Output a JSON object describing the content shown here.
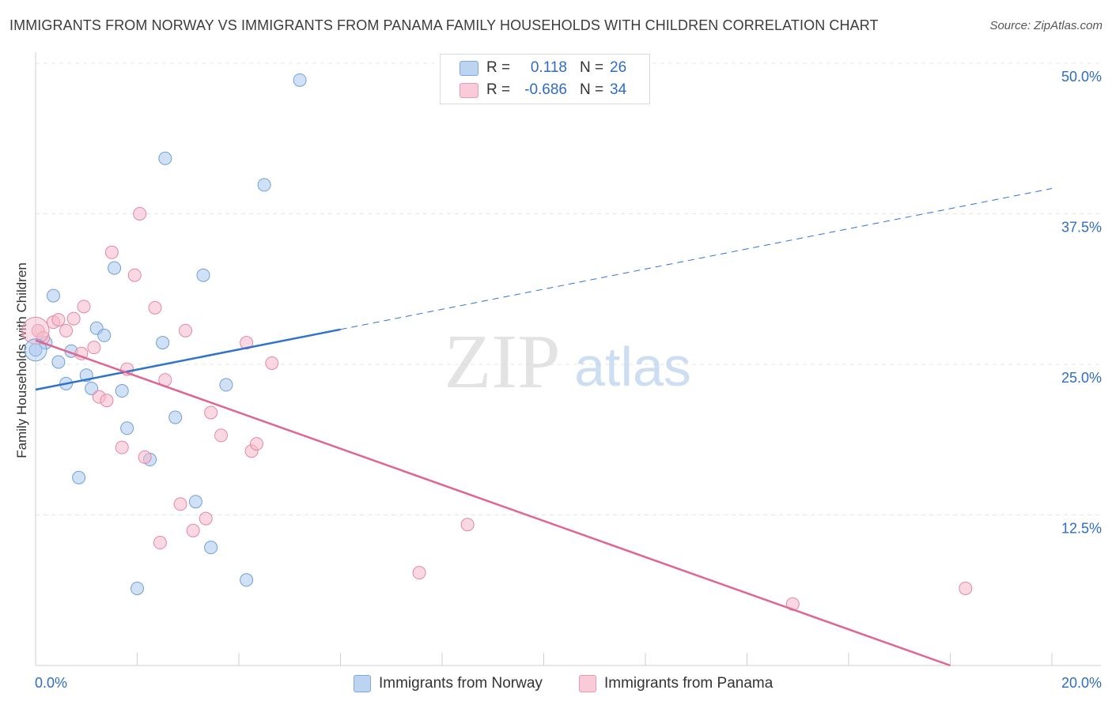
{
  "title": "IMMIGRANTS FROM NORWAY VS IMMIGRANTS FROM PANAMA FAMILY HOUSEHOLDS WITH CHILDREN CORRELATION CHART",
  "source": "Source: ZipAtlas.com",
  "watermark": {
    "zip": "ZIP",
    "atlas": "atlas"
  },
  "stats": [
    {
      "r_label": "R =",
      "r_value": "0.118",
      "n_label": "N =",
      "n_value": "26",
      "color": "#a9c8ef"
    },
    {
      "r_label": "R =",
      "r_value": "-0.686",
      "n_label": "N =",
      "n_value": "34",
      "color": "#f5b8c9"
    }
  ],
  "legend": [
    {
      "label": "Immigrants from Norway",
      "color": "#a9c8ef"
    },
    {
      "label": "Immigrants from Panama",
      "color": "#f5b8c9"
    }
  ],
  "chart_data": {
    "type": "scatter",
    "title": "IMMIGRANTS FROM NORWAY VS IMMIGRANTS FROM PANAMA FAMILY HOUSEHOLDS WITH CHILDREN CORRELATION CHART",
    "xlabel": "",
    "ylabel": "Family Households with Children",
    "xlim": [
      0,
      20
    ],
    "ylim": [
      0,
      50
    ],
    "x_tick_labels": [
      "0.0%",
      "20.0%"
    ],
    "y_ticks": [
      12.5,
      25.0,
      37.5,
      50.0
    ],
    "y_tick_labels": [
      "12.5%",
      "25.0%",
      "37.5%",
      "50.0%"
    ],
    "grid": true,
    "series": [
      {
        "name": "Immigrants from Norway",
        "color": "#a9c8ef",
        "stroke": "#6f9fd8",
        "line_color": "#2f73cf",
        "trend": {
          "x0": 0,
          "y0": 22.9,
          "x_solid_end": 6.0,
          "y_solid_end": 27.9,
          "x1": 20,
          "y1": 39.6
        },
        "points": [
          [
            0.0,
            26.2
          ],
          [
            0.2,
            26.8
          ],
          [
            0.35,
            30.7
          ],
          [
            0.45,
            25.2
          ],
          [
            0.6,
            23.4
          ],
          [
            0.7,
            26.1
          ],
          [
            0.85,
            15.6
          ],
          [
            1.0,
            24.1
          ],
          [
            1.1,
            23.0
          ],
          [
            1.2,
            28.0
          ],
          [
            1.35,
            27.4
          ],
          [
            1.55,
            33.0
          ],
          [
            1.7,
            22.8
          ],
          [
            1.8,
            19.7
          ],
          [
            2.0,
            6.4
          ],
          [
            2.25,
            17.1
          ],
          [
            2.5,
            26.8
          ],
          [
            2.55,
            42.1
          ],
          [
            2.75,
            20.6
          ],
          [
            3.15,
            13.6
          ],
          [
            3.3,
            32.4
          ],
          [
            3.45,
            9.8
          ],
          [
            3.75,
            23.3
          ],
          [
            4.15,
            7.1
          ],
          [
            4.5,
            39.9
          ],
          [
            5.2,
            48.6
          ]
        ]
      },
      {
        "name": "Immigrants from Panama",
        "color": "#f5b8c9",
        "stroke": "#e487a4",
        "line_color": "#e0658f",
        "trend": {
          "x0": 0,
          "y0": 27.0,
          "x1": 18.0,
          "y1": 0.0
        },
        "points": [
          [
            0.05,
            27.8
          ],
          [
            0.15,
            27.2
          ],
          [
            0.35,
            28.5
          ],
          [
            0.45,
            28.7
          ],
          [
            0.6,
            27.8
          ],
          [
            0.75,
            28.8
          ],
          [
            0.9,
            25.9
          ],
          [
            0.95,
            29.8
          ],
          [
            1.15,
            26.4
          ],
          [
            1.25,
            22.3
          ],
          [
            1.4,
            22.0
          ],
          [
            1.5,
            34.3
          ],
          [
            1.7,
            18.1
          ],
          [
            1.8,
            24.6
          ],
          [
            1.95,
            32.4
          ],
          [
            2.05,
            37.5
          ],
          [
            2.15,
            17.3
          ],
          [
            2.35,
            29.7
          ],
          [
            2.45,
            10.2
          ],
          [
            2.55,
            23.7
          ],
          [
            2.85,
            13.4
          ],
          [
            2.95,
            27.8
          ],
          [
            3.1,
            11.2
          ],
          [
            3.35,
            12.2
          ],
          [
            3.45,
            21.0
          ],
          [
            3.65,
            19.1
          ],
          [
            4.15,
            26.8
          ],
          [
            4.25,
            17.8
          ],
          [
            4.35,
            18.4
          ],
          [
            4.65,
            25.1
          ],
          [
            7.55,
            7.7
          ],
          [
            8.5,
            11.7
          ],
          [
            14.9,
            5.1
          ],
          [
            18.3,
            6.4
          ]
        ]
      }
    ]
  }
}
